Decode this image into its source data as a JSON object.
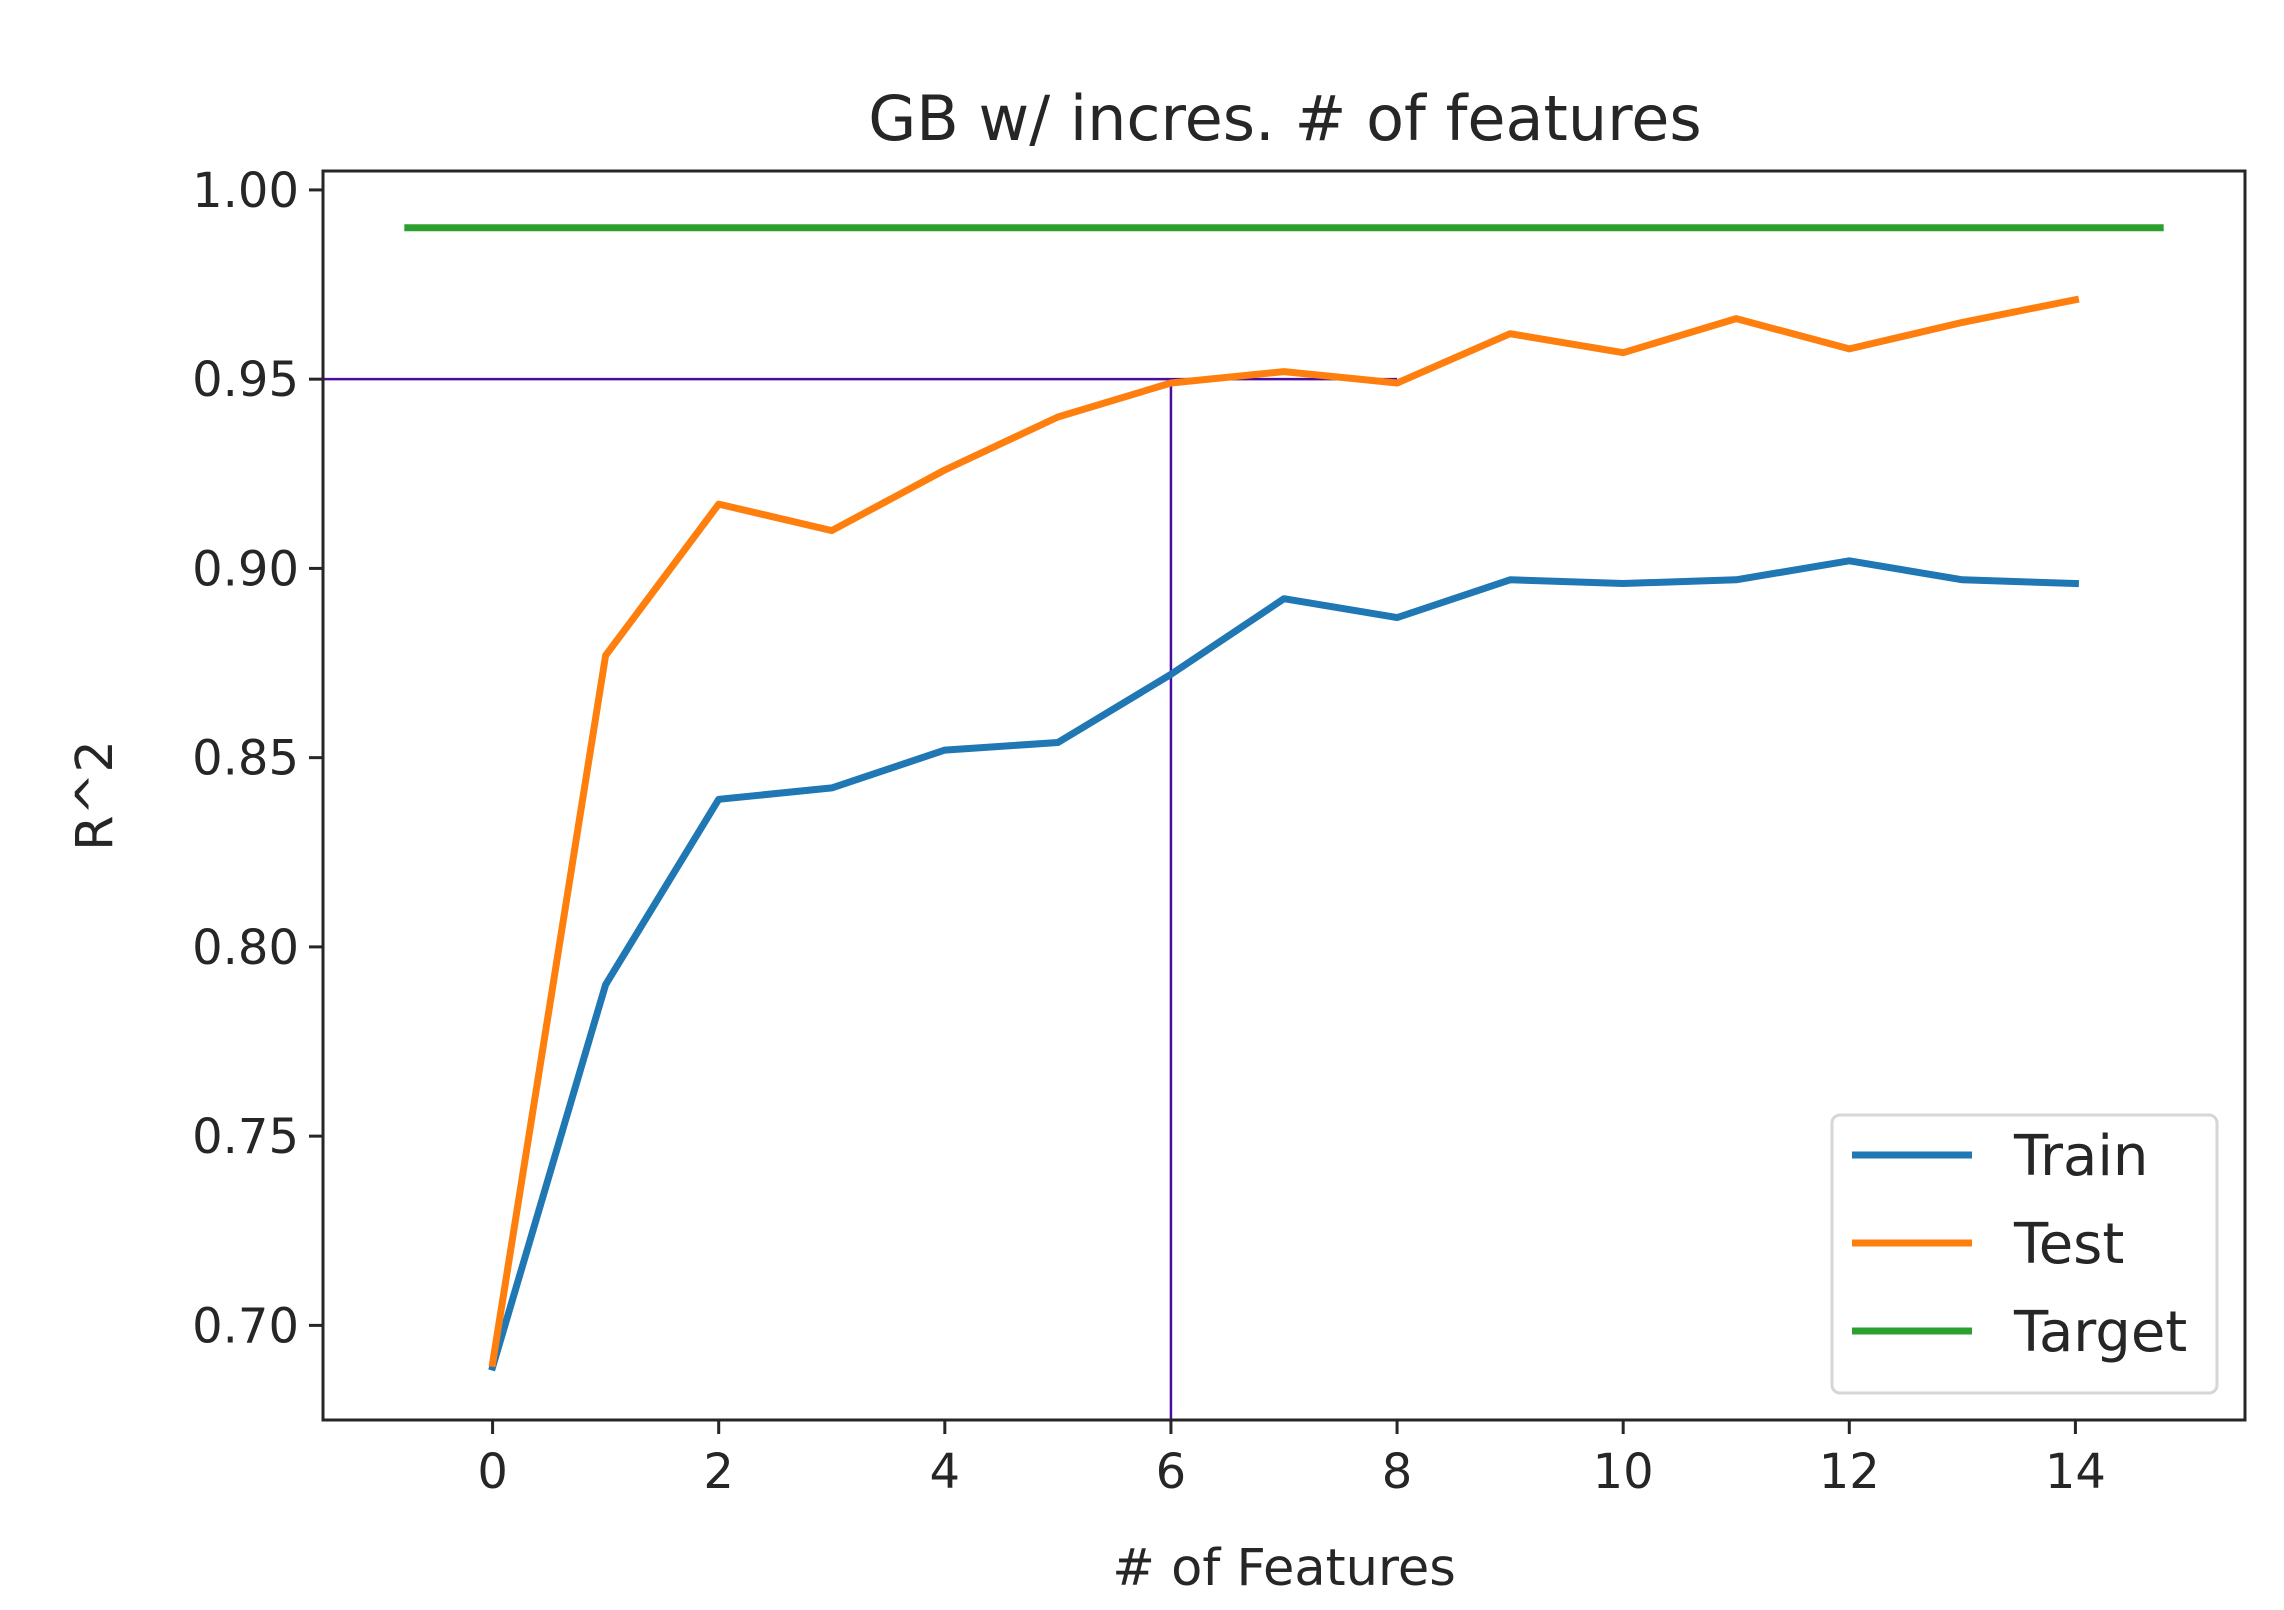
{
  "chart_data": {
    "type": "line",
    "title": "GB w/ incres. # of features",
    "xlabel": "# of Features",
    "ylabel": "R^2",
    "xlim": [
      -1.5,
      15.5
    ],
    "ylim": [
      0.675,
      1.005
    ],
    "xticks": [
      0,
      2,
      4,
      6,
      8,
      10,
      12,
      14
    ],
    "xtick_labels": [
      "0",
      "2",
      "4",
      "6",
      "8",
      "10",
      "12",
      "14"
    ],
    "yticks": [
      0.7,
      0.75,
      0.8,
      0.85,
      0.9,
      0.95,
      1.0
    ],
    "ytick_labels": [
      "0.70",
      "0.75",
      "0.80",
      "0.85",
      "0.90",
      "0.95",
      "1.00"
    ],
    "grid": false,
    "legend": "bottom-right",
    "series": [
      {
        "name": "Train",
        "color": "#1f77b4",
        "x": [
          0,
          1,
          2,
          3,
          4,
          5,
          6,
          7,
          8,
          9,
          10,
          11,
          12,
          13,
          14
        ],
        "values": [
          0.689,
          0.79,
          0.839,
          0.842,
          0.852,
          0.854,
          0.872,
          0.892,
          0.887,
          0.897,
          0.896,
          0.897,
          0.902,
          0.897,
          0.896
        ]
      },
      {
        "name": "Test",
        "color": "#ff7f0e",
        "x": [
          0,
          1,
          2,
          3,
          4,
          5,
          6,
          7,
          8,
          9,
          10,
          11,
          12,
          13,
          14
        ],
        "values": [
          0.69,
          0.877,
          0.917,
          0.91,
          0.926,
          0.94,
          0.949,
          0.952,
          0.949,
          0.962,
          0.957,
          0.966,
          0.958,
          0.965,
          0.971
        ]
      },
      {
        "name": "Target",
        "color": "#2ca02c",
        "x": [
          -0.75,
          14.75
        ],
        "values": [
          0.99,
          0.99
        ]
      }
    ],
    "annotations": [
      {
        "type": "reference-lines",
        "color": "#4b0aa0",
        "horizontal": {
          "y": 0.95,
          "x_from": -1.5,
          "x_to": 8
        },
        "vertical": {
          "x": 6,
          "y_from": 0.675,
          "y_to": 0.95
        }
      }
    ]
  }
}
